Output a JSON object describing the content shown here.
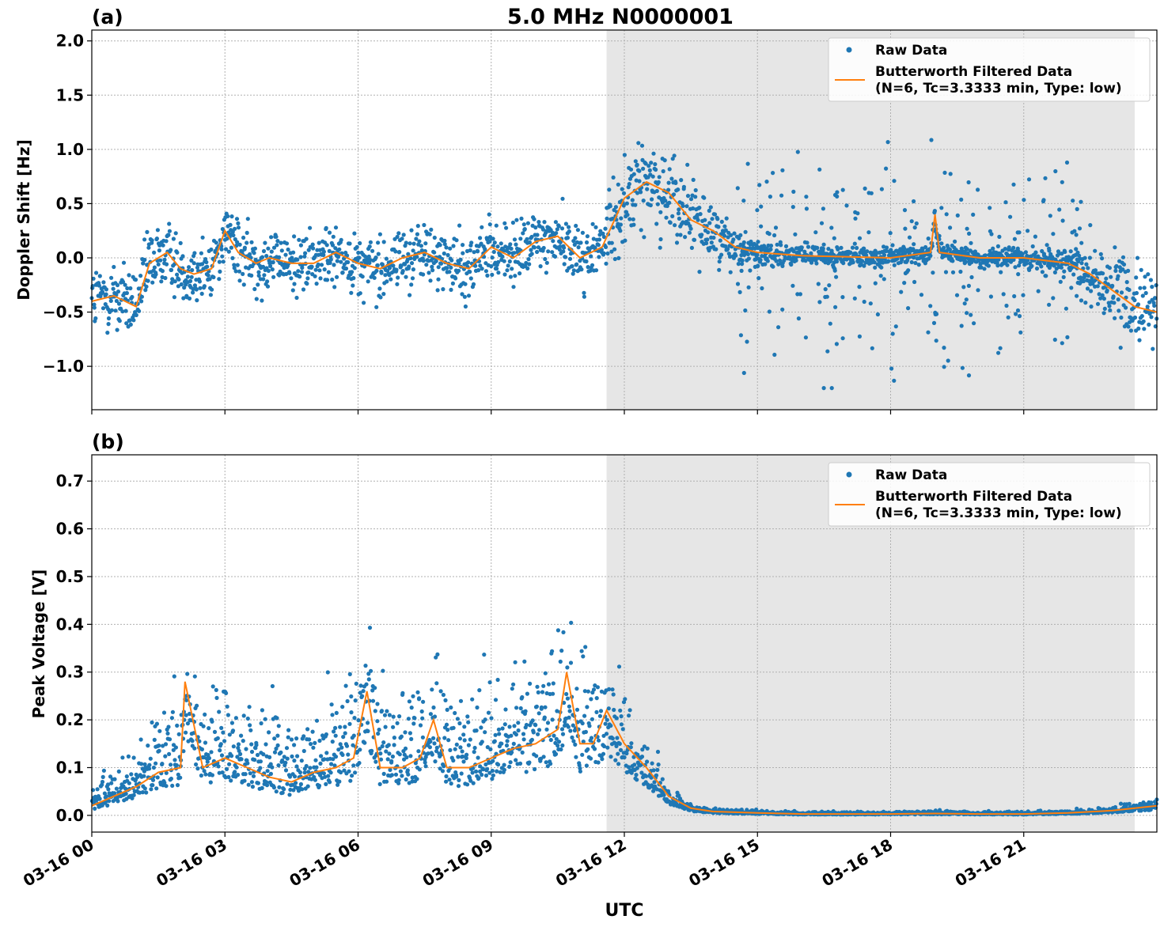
{
  "figure": {
    "title": "5.0 MHz N0000001",
    "xlabel": "UTC",
    "x_tick_labels": [
      "03-16 00",
      "03-16 03",
      "03-16 06",
      "03-16 09",
      "03-16 12",
      "03-16 15",
      "03-16 18",
      "03-16 21"
    ],
    "colors": {
      "raw": "#1f77b4",
      "filtered": "#ff7f0e",
      "shade": "#e6e6e6"
    }
  },
  "chart_data": [
    {
      "type": "scatter",
      "panel_label": "(a)",
      "ylabel": "Doppler Shift [Hz]",
      "x_unit": "UTC hours on 03-16",
      "xlim": [
        0,
        24
      ],
      "ylim": [
        -1.4,
        2.1
      ],
      "y_ticks": [
        -1.0,
        -0.5,
        0.0,
        0.5,
        1.0,
        1.5,
        2.0
      ],
      "y_tick_labels": [
        "−1.0",
        "−0.5",
        "0.0",
        "0.5",
        "1.0",
        "1.5",
        "2.0"
      ],
      "grid": true,
      "legend_position": "top-right",
      "shaded_interval_hours": [
        11.6,
        23.5
      ],
      "legend": {
        "raw": "Raw Data",
        "filtered_line1": "Butterworth Filtered Data",
        "filtered_line2": "(N=6, Tc=3.3333 min, Type: low)"
      },
      "series": [
        {
          "name": "Butterworth Filtered Data",
          "x": [
            0,
            0.5,
            1,
            1.3,
            1.7,
            2,
            2.3,
            2.7,
            3,
            3.3,
            3.7,
            4,
            4.5,
            5,
            5.5,
            6,
            6.5,
            7,
            7.5,
            8,
            8.5,
            9,
            9.5,
            10,
            10.5,
            11,
            11.5,
            12,
            12.5,
            13,
            13.5,
            14,
            14.5,
            15,
            16,
            17,
            18,
            18.9,
            19,
            19.1,
            20,
            21,
            22,
            22.5,
            23,
            23.5,
            24
          ],
          "y": [
            -0.4,
            -0.35,
            -0.45,
            -0.05,
            0.05,
            -0.1,
            -0.15,
            -0.1,
            0.25,
            0.05,
            -0.05,
            0.0,
            -0.05,
            -0.05,
            0.05,
            -0.05,
            -0.1,
            0.0,
            0.05,
            -0.05,
            -0.1,
            0.1,
            0.0,
            0.15,
            0.2,
            0.0,
            0.1,
            0.55,
            0.7,
            0.6,
            0.35,
            0.25,
            0.1,
            0.05,
            0.02,
            0.01,
            0.0,
            0.05,
            0.4,
            0.05,
            0.0,
            0.0,
            -0.05,
            -0.15,
            -0.3,
            -0.45,
            -0.5
          ]
        },
        {
          "name": "Raw Data",
          "spread_y": [
            0.3,
            0.3,
            0.3,
            0.3,
            0.3,
            0.25,
            0.25,
            0.25,
            0.25,
            0.25,
            0.25,
            0.25,
            0.25,
            0.25,
            0.25,
            0.25,
            0.25,
            0.25,
            0.25,
            0.25,
            0.25,
            0.25,
            0.25,
            0.25,
            0.25,
            0.25,
            0.3,
            0.35,
            0.35,
            0.35,
            0.3,
            0.25,
            0.15,
            0.1,
            0.08,
            0.08,
            0.08,
            0.08,
            0.1,
            0.08,
            0.08,
            0.08,
            0.12,
            0.2,
            0.3,
            0.35,
            0.4
          ]
        }
      ]
    },
    {
      "type": "scatter",
      "panel_label": "(b)",
      "ylabel": "Peak Voltage [V]",
      "x_unit": "UTC hours on 03-16",
      "xlim": [
        0,
        24
      ],
      "ylim": [
        -0.035,
        0.755
      ],
      "y_ticks": [
        0.0,
        0.1,
        0.2,
        0.3,
        0.4,
        0.5,
        0.6,
        0.7
      ],
      "y_tick_labels": [
        "0.0",
        "0.1",
        "0.2",
        "0.3",
        "0.4",
        "0.5",
        "0.6",
        "0.7"
      ],
      "grid": true,
      "legend_position": "top-right",
      "shaded_interval_hours": [
        11.6,
        23.5
      ],
      "legend": {
        "raw": "Raw Data",
        "filtered_line1": "Butterworth Filtered Data",
        "filtered_line2": "(N=6, Tc=3.3333 min, Type: low)"
      },
      "series": [
        {
          "name": "Butterworth Filtered Data",
          "x": [
            0,
            0.5,
            1,
            1.5,
            2,
            2.1,
            2.5,
            3,
            3.5,
            4,
            4.5,
            5,
            5.5,
            5.9,
            6.2,
            6.5,
            7,
            7.4,
            7.7,
            8,
            8.5,
            9,
            9.5,
            10,
            10.5,
            10.7,
            11,
            11.3,
            11.6,
            12,
            12.5,
            13,
            13.5,
            14,
            15,
            16,
            17,
            18,
            19,
            20,
            21,
            22,
            23,
            24
          ],
          "y": [
            0.02,
            0.04,
            0.06,
            0.09,
            0.1,
            0.28,
            0.1,
            0.12,
            0.1,
            0.08,
            0.07,
            0.09,
            0.1,
            0.12,
            0.26,
            0.1,
            0.1,
            0.12,
            0.2,
            0.1,
            0.1,
            0.12,
            0.14,
            0.15,
            0.18,
            0.3,
            0.15,
            0.15,
            0.22,
            0.15,
            0.1,
            0.04,
            0.015,
            0.008,
            0.005,
            0.003,
            0.003,
            0.003,
            0.004,
            0.003,
            0.003,
            0.005,
            0.01,
            0.02
          ]
        },
        {
          "name": "Raw Data",
          "spread_y": [
            0.02,
            0.04,
            0.06,
            0.08,
            0.09,
            0.1,
            0.1,
            0.1,
            0.09,
            0.09,
            0.08,
            0.09,
            0.1,
            0.1,
            0.11,
            0.1,
            0.1,
            0.1,
            0.11,
            0.11,
            0.11,
            0.11,
            0.12,
            0.12,
            0.13,
            0.13,
            0.12,
            0.11,
            0.1,
            0.07,
            0.05,
            0.02,
            0.008,
            0.005,
            0.004,
            0.003,
            0.003,
            0.003,
            0.004,
            0.003,
            0.003,
            0.004,
            0.006,
            0.01
          ]
        }
      ]
    }
  ]
}
